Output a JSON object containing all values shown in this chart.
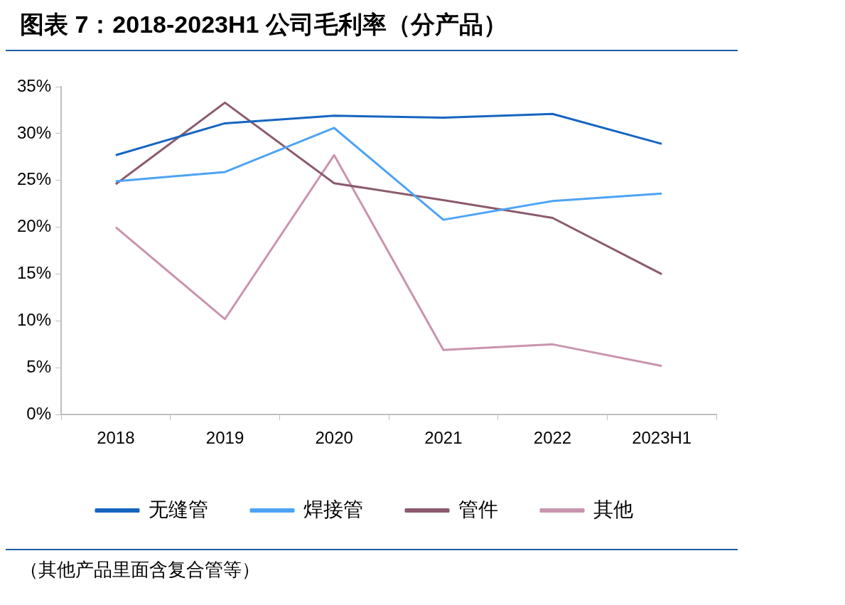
{
  "chart_data": {
    "type": "line",
    "title": "图表 7：2018-2023H1 公司毛利率（分产品）",
    "categories": [
      "2018",
      "2019",
      "2020",
      "2021",
      "2022",
      "2023H1"
    ],
    "series": [
      {
        "name": "无缝管",
        "color": "#1565c0",
        "values": [
          27.7,
          31.1,
          31.9,
          31.7,
          32.1,
          28.9
        ]
      },
      {
        "name": "焊接管",
        "color": "#4da3f5",
        "values": [
          24.9,
          25.9,
          30.6,
          20.8,
          22.8,
          23.6
        ]
      },
      {
        "name": "管件",
        "color": "#8b5a6e",
        "values": [
          24.6,
          33.3,
          24.7,
          22.9,
          21.0,
          15.0
        ]
      },
      {
        "name": "其他",
        "color": "#c994ae",
        "values": [
          20.0,
          10.2,
          27.7,
          6.9,
          7.5,
          5.2
        ]
      }
    ],
    "ylim": [
      0,
      35
    ],
    "yticks": [
      {
        "value": 0,
        "label": "0%"
      },
      {
        "value": 5,
        "label": "5%"
      },
      {
        "value": 10,
        "label": "10%"
      },
      {
        "value": 15,
        "label": "15%"
      },
      {
        "value": 20,
        "label": "20%"
      },
      {
        "value": 25,
        "label": "25%"
      },
      {
        "value": 30,
        "label": "30%"
      },
      {
        "value": 35,
        "label": "35%"
      }
    ],
    "grid": false,
    "legend": "bottom",
    "marker": "none",
    "line_style": "solid",
    "annotations": [
      "（其他产品里面含复合管等）"
    ]
  }
}
